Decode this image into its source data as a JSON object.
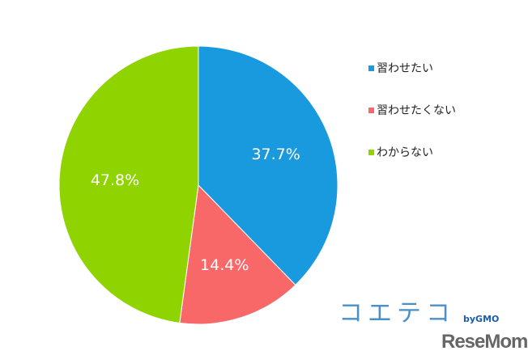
{
  "chart_data": {
    "type": "pie",
    "start_angle": "top",
    "direction": "clockwise",
    "series": [
      {
        "name": "習わせたい",
        "value": 37.7,
        "label": "37.7%",
        "color": "#1a9ade"
      },
      {
        "name": "習わせたくない",
        "value": 14.4,
        "label": "14.4%",
        "color": "#f96868"
      },
      {
        "name": "わからない",
        "value": 47.8,
        "label": "47.8%",
        "color": "#8fd400"
      }
    ],
    "legend_position": "right"
  },
  "logo": {
    "main": "コエテコ",
    "by": "byGMO",
    "watermark": "ReseMom"
  }
}
